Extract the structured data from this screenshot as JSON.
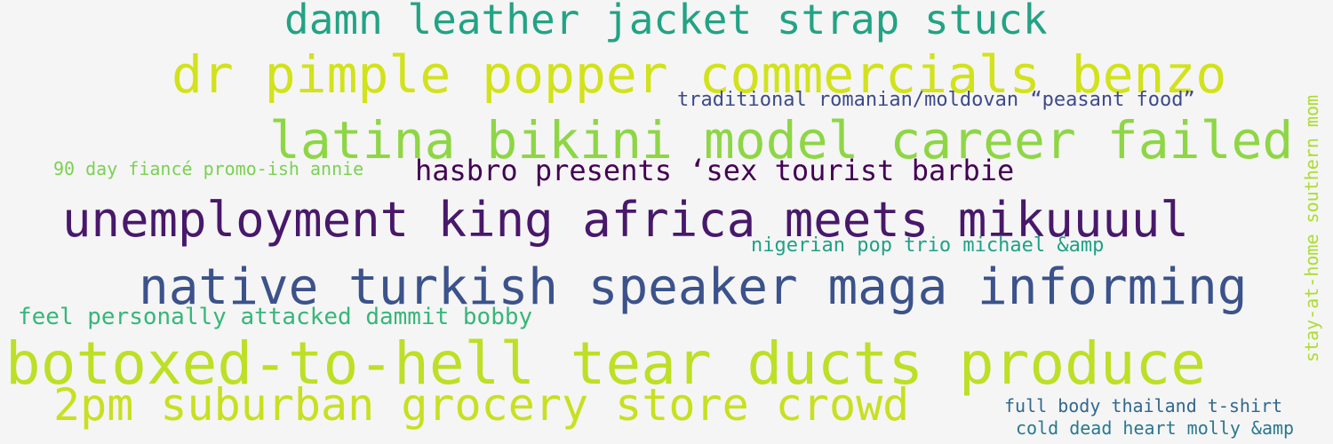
{
  "phrases": [
    {
      "text": "damn leather jacket strap stuck",
      "color": "#22a384"
    },
    {
      "text": "dr pimple popper commercials benzo",
      "color": "#d2e21b"
    },
    {
      "text": "traditional romanian/moldovan “peasant food”",
      "color": "#3e4a89"
    },
    {
      "text": "latina bikini model career failed",
      "color": "#8ed645"
    },
    {
      "text": "90 day fiancé promo-ish annie",
      "color": "#7ad151"
    },
    {
      "text": "hasbro presents ‘sex tourist barbie",
      "color": "#440154"
    },
    {
      "text": "unemployment king africa meets mikuuuul",
      "color": "#48186a"
    },
    {
      "text": "nigerian pop trio michael &amp",
      "color": "#1fa187"
    },
    {
      "text": "native turkish speaker maga informing",
      "color": "#3b528b"
    },
    {
      "text": "feel personally attacked dammit bobby",
      "color": "#35b779"
    },
    {
      "text": "botoxed-to-hell tear ducts produce",
      "color": "#bddf26"
    },
    {
      "text": "2pm suburban grocery store crowd",
      "color": "#c8e020"
    },
    {
      "text": "full body thailand t-shirt",
      "color": "#31688e"
    },
    {
      "text": "cold dead heart molly &amp",
      "color": "#2a788e"
    },
    {
      "text": "stay-at-home southern mom",
      "color": "#addc30"
    }
  ]
}
